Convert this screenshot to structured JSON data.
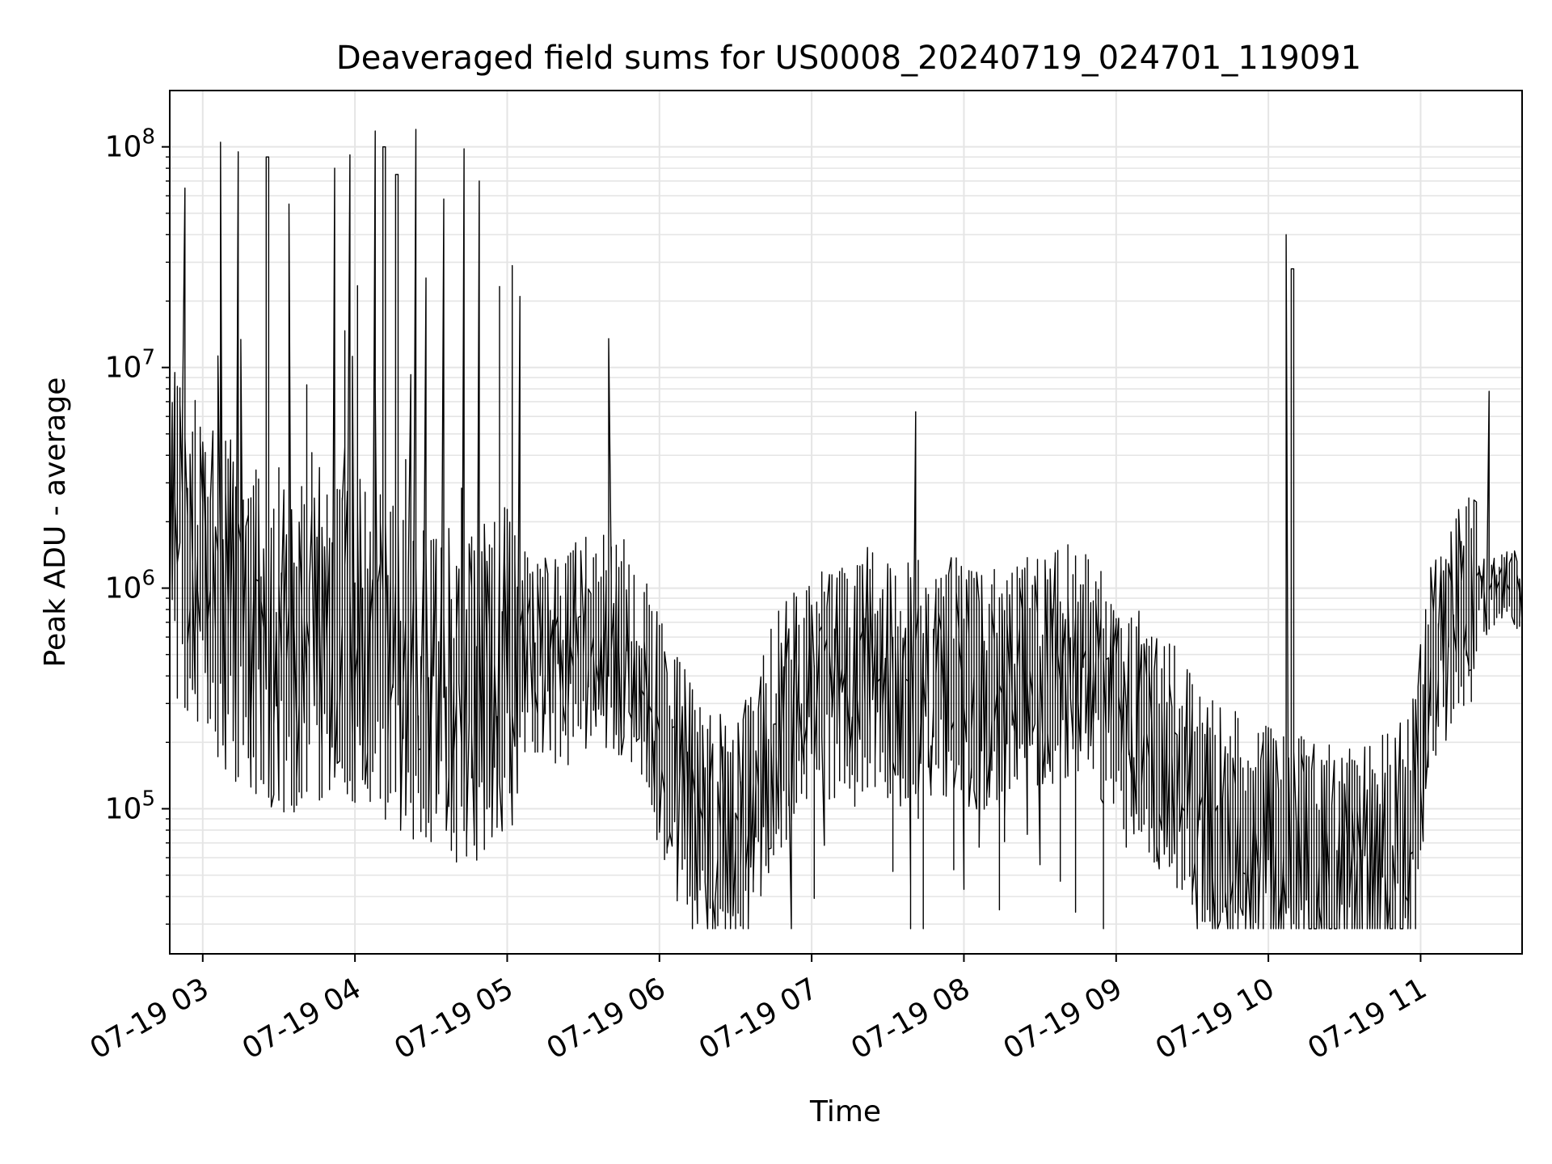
{
  "chart_data": {
    "type": "line",
    "title": "Deaveraged field sums for US0008_20240719_024701_119091",
    "xlabel": "Time",
    "ylabel": "Peak ADU - average",
    "yscale": "log",
    "xlim": [
      "2024-07-19 02:47",
      "2024-07-19 11:40"
    ],
    "ylim": [
      22000,
      180000000
    ],
    "grid": true,
    "line_color": "#000000",
    "grid_color": "#e5e5e5",
    "x_ticks": [
      "2024-07-19 03:00",
      "2024-07-19 04:00",
      "2024-07-19 05:00",
      "2024-07-19 06:00",
      "2024-07-19 07:00",
      "2024-07-19 08:00",
      "2024-07-19 09:00",
      "2024-07-19 10:00",
      "2024-07-19 11:00"
    ],
    "x_tick_labels": [
      "07-19 03",
      "07-19 04",
      "07-19 05",
      "07-19 06",
      "07-19 07",
      "07-19 08",
      "07-19 09",
      "07-19 10",
      "07-19 11"
    ],
    "y_ticks": [
      100000,
      1000000,
      10000000,
      100000000
    ],
    "y_tick_labels": [
      {
        "base": "10",
        "exp": "5"
      },
      {
        "base": "10",
        "exp": "6"
      },
      {
        "base": "10",
        "exp": "7"
      },
      {
        "base": "10",
        "exp": "8"
      }
    ],
    "series": [
      {
        "x": [
          "2024-07-19 02:47",
          "2024-07-19 02:55",
          "2024-07-19 03:05",
          "2024-07-19 03:15",
          "2024-07-19 03:25",
          "2024-07-19 03:35",
          "2024-07-19 03:45",
          "2024-07-19 03:55",
          "2024-07-19 04:05",
          "2024-07-19 04:15",
          "2024-07-19 04:25",
          "2024-07-19 04:35",
          "2024-07-19 04:45",
          "2024-07-19 04:55",
          "2024-07-19 05:05",
          "2024-07-19 05:15",
          "2024-07-19 05:25",
          "2024-07-19 05:35",
          "2024-07-19 05:45",
          "2024-07-19 05:55",
          "2024-07-19 06:05",
          "2024-07-19 06:15",
          "2024-07-19 06:25",
          "2024-07-19 06:35",
          "2024-07-19 06:45",
          "2024-07-19 06:55",
          "2024-07-19 07:05",
          "2024-07-19 07:15",
          "2024-07-19 07:25",
          "2024-07-19 07:35",
          "2024-07-19 07:45",
          "2024-07-19 07:55",
          "2024-07-19 08:05",
          "2024-07-19 08:15",
          "2024-07-19 08:25",
          "2024-07-19 08:35",
          "2024-07-19 08:45",
          "2024-07-19 08:55",
          "2024-07-19 09:05",
          "2024-07-19 09:15",
          "2024-07-19 09:25",
          "2024-07-19 09:35",
          "2024-07-19 09:45",
          "2024-07-19 09:55",
          "2024-07-19 10:05",
          "2024-07-19 10:15",
          "2024-07-19 10:25",
          "2024-07-19 10:35",
          "2024-07-19 10:45",
          "2024-07-19 10:55",
          "2024-07-19 11:05",
          "2024-07-19 11:15",
          "2024-07-19 11:25",
          "2024-07-19 11:35",
          "2024-07-19 11:40"
        ],
        "y": [
          2000000,
          1500000,
          900000,
          700000,
          600000,
          500000,
          550000,
          600000,
          550000,
          450000,
          400000,
          350000,
          300000,
          400000,
          500000,
          450000,
          500000,
          600000,
          550000,
          400000,
          150000,
          100000,
          80000,
          90000,
          200000,
          300000,
          350000,
          400000,
          450000,
          350000,
          400000,
          400000,
          350000,
          350000,
          400000,
          450000,
          500000,
          350000,
          250000,
          200000,
          150000,
          100000,
          80000,
          70000,
          65000,
          60000,
          55000,
          55000,
          60000,
          80000,
          400000,
          850000,
          900000,
          1100000,
          950000
        ],
        "spikes": [
          {
            "x": "2024-07-19 02:53",
            "y": 65000000
          },
          {
            "x": "2024-07-19 03:08",
            "y": 105000000
          },
          {
            "x": "2024-07-19 03:14",
            "y": 95000000
          },
          {
            "x": "2024-07-19 03:26",
            "y": 90000000
          },
          {
            "x": "2024-07-19 03:35",
            "y": 55000000
          },
          {
            "x": "2024-07-19 03:52",
            "y": 80000000
          },
          {
            "x": "2024-07-19 03:58",
            "y": 92000000
          },
          {
            "x": "2024-07-19 04:08",
            "y": 118000000
          },
          {
            "x": "2024-07-19 04:12",
            "y": 100000000
          },
          {
            "x": "2024-07-19 04:17",
            "y": 75000000
          },
          {
            "x": "2024-07-19 04:24",
            "y": 120000000
          },
          {
            "x": "2024-07-19 04:35",
            "y": 58000000
          },
          {
            "x": "2024-07-19 04:43",
            "y": 98000000
          },
          {
            "x": "2024-07-19 04:49",
            "y": 70000000
          },
          {
            "x": "2024-07-19 05:05",
            "y": 21000000
          },
          {
            "x": "2024-07-19 05:41",
            "y": 13500000
          },
          {
            "x": "2024-07-19 07:41",
            "y": 6300000
          },
          {
            "x": "2024-07-19 10:08",
            "y": 40000000
          },
          {
            "x": "2024-07-19 10:10",
            "y": 28000000
          },
          {
            "x": "2024-07-19 11:27",
            "y": 7800000
          }
        ]
      }
    ]
  }
}
